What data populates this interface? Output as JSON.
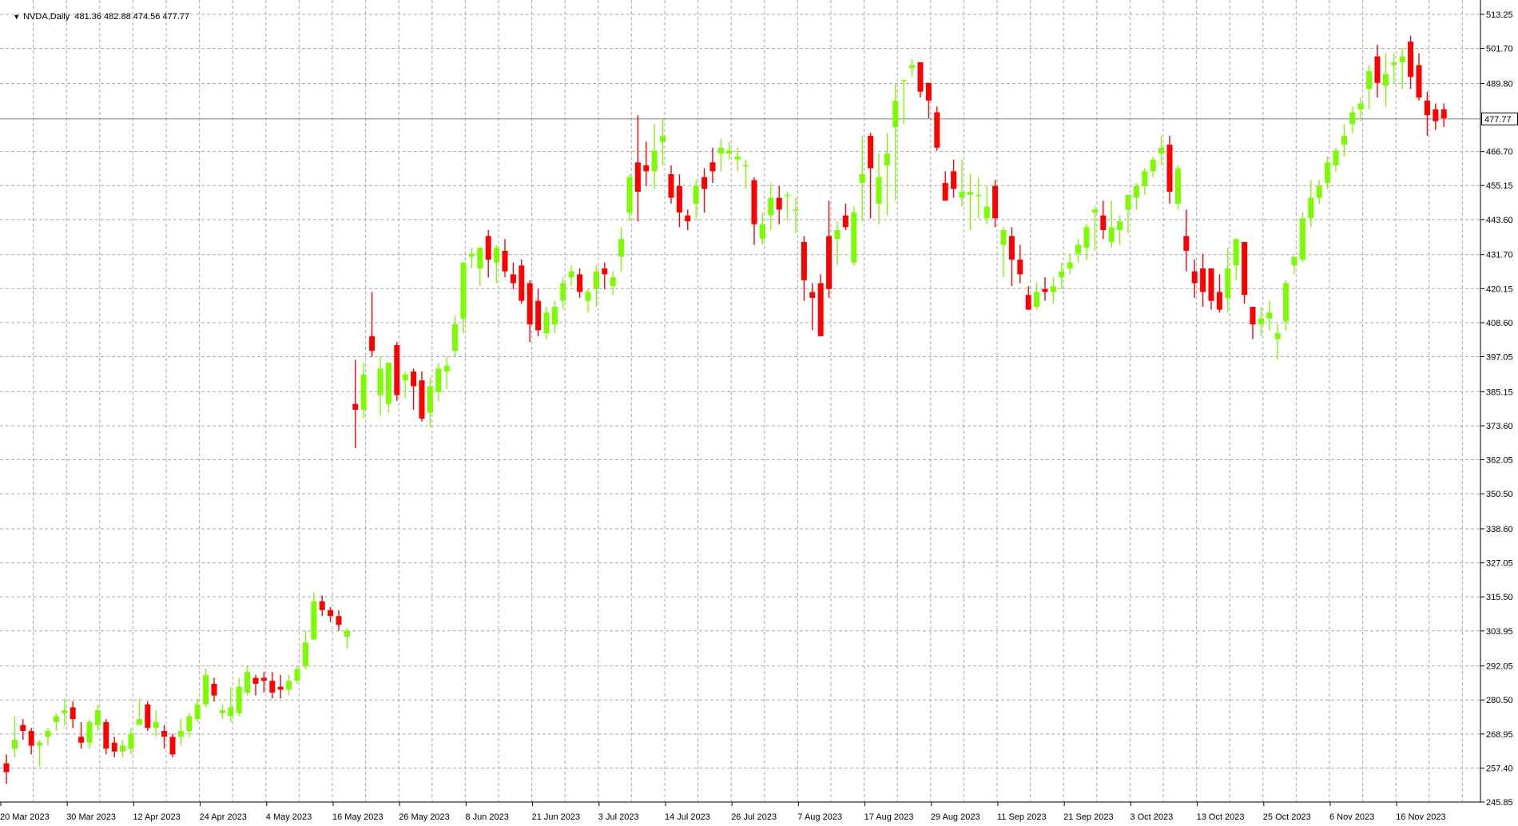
{
  "header": {
    "symbol": "NVDA,Daily",
    "ohlc": "481.36 482.88 474.56 477.77"
  },
  "colors": {
    "bull": "#7CFC00",
    "bear": "#FF0000",
    "grid": "#A9A9A9",
    "axis": "#000000",
    "background": "#FFFFFF",
    "price_line": "#808080"
  },
  "chart_data": {
    "type": "candlestick",
    "title": "NVDA,Daily",
    "grid": true,
    "ylim": [
      245.85,
      513.25
    ],
    "current_price": 477.77,
    "y_ticks": [
      "513.25",
      "501.70",
      "489.80",
      "477.77",
      "466.70",
      "455.15",
      "443.60",
      "431.70",
      "420.15",
      "408.60",
      "397.05",
      "385.15",
      "373.60",
      "362.05",
      "350.50",
      "338.60",
      "327.05",
      "315.50",
      "303.95",
      "292.05",
      "280.50",
      "268.95",
      "257.40",
      "245.85"
    ],
    "x_labels": [
      "20 Mar 2023",
      "30 Mar 2023",
      "12 Apr 2023",
      "24 Apr 2023",
      "4 May 2023",
      "16 May 2023",
      "26 May 2023",
      "8 Jun 2023",
      "21 Jun 2023",
      "3 Jul 2023",
      "14 Jul 2023",
      "26 Jul 2023",
      "7 Aug 2023",
      "17 Aug 2023",
      "29 Aug 2023",
      "11 Sep 2023",
      "21 Sep 2023",
      "3 Oct 2023",
      "13 Oct 2023",
      "25 Oct 2023",
      "6 Nov 2023",
      "16 Nov 2023"
    ],
    "candles": [
      {
        "o": 259,
        "h": 262,
        "l": 252,
        "c": 256
      },
      {
        "o": 264,
        "h": 275,
        "l": 261,
        "c": 267
      },
      {
        "o": 272,
        "h": 274,
        "l": 267,
        "c": 270
      },
      {
        "o": 270,
        "h": 271,
        "l": 262,
        "c": 265
      },
      {
        "o": 265,
        "h": 267,
        "l": 258,
        "c": 266
      },
      {
        "o": 268,
        "h": 271,
        "l": 265,
        "c": 270
      },
      {
        "o": 273,
        "h": 276,
        "l": 270,
        "c": 275
      },
      {
        "o": 276,
        "h": 281,
        "l": 272,
        "c": 277
      },
      {
        "o": 278,
        "h": 280,
        "l": 271,
        "c": 274
      },
      {
        "o": 268,
        "h": 273,
        "l": 264,
        "c": 266
      },
      {
        "o": 266,
        "h": 274,
        "l": 264,
        "c": 273
      },
      {
        "o": 272,
        "h": 279,
        "l": 270,
        "c": 277
      },
      {
        "o": 273,
        "h": 274,
        "l": 262,
        "c": 264
      },
      {
        "o": 266,
        "h": 268,
        "l": 261,
        "c": 263
      },
      {
        "o": 263,
        "h": 267,
        "l": 261,
        "c": 265
      },
      {
        "o": 264,
        "h": 271,
        "l": 262,
        "c": 269
      },
      {
        "o": 272,
        "h": 281,
        "l": 272,
        "c": 274
      },
      {
        "o": 279,
        "h": 280,
        "l": 270,
        "c": 271
      },
      {
        "o": 271,
        "h": 277,
        "l": 268,
        "c": 273
      },
      {
        "o": 270,
        "h": 272,
        "l": 264,
        "c": 268
      },
      {
        "o": 268,
        "h": 269,
        "l": 261,
        "c": 262
      },
      {
        "o": 268,
        "h": 274,
        "l": 265,
        "c": 270
      },
      {
        "o": 270,
        "h": 276,
        "l": 268,
        "c": 275
      },
      {
        "o": 274,
        "h": 281,
        "l": 273,
        "c": 279
      },
      {
        "o": 279,
        "h": 291,
        "l": 278,
        "c": 289
      },
      {
        "o": 286,
        "h": 288,
        "l": 280,
        "c": 282
      },
      {
        "o": 276,
        "h": 279,
        "l": 274,
        "c": 277
      },
      {
        "o": 275,
        "h": 285,
        "l": 273,
        "c": 278
      },
      {
        "o": 276,
        "h": 288,
        "l": 275,
        "c": 285
      },
      {
        "o": 283,
        "h": 292,
        "l": 282,
        "c": 290
      },
      {
        "o": 288,
        "h": 289,
        "l": 282,
        "c": 286
      },
      {
        "o": 288,
        "h": 290,
        "l": 283,
        "c": 287
      },
      {
        "o": 287,
        "h": 290,
        "l": 281,
        "c": 283
      },
      {
        "o": 285,
        "h": 289,
        "l": 281,
        "c": 284
      },
      {
        "o": 284,
        "h": 289,
        "l": 282,
        "c": 287
      },
      {
        "o": 287,
        "h": 292,
        "l": 286,
        "c": 291
      },
      {
        "o": 292,
        "h": 304,
        "l": 291,
        "c": 300
      },
      {
        "o": 301,
        "h": 317,
        "l": 301,
        "c": 314
      },
      {
        "o": 314,
        "h": 316,
        "l": 309,
        "c": 311
      },
      {
        "o": 311,
        "h": 312,
        "l": 307,
        "c": 309
      },
      {
        "o": 309,
        "h": 311,
        "l": 304,
        "c": 306
      },
      {
        "o": 302,
        "h": 305,
        "l": 298,
        "c": 304
      },
      {
        "o": 381,
        "h": 396,
        "l": 366,
        "c": 379
      },
      {
        "o": 379,
        "h": 395,
        "l": 376,
        "c": 391
      },
      {
        "o": 404,
        "h": 419,
        "l": 397,
        "c": 399
      },
      {
        "o": 384,
        "h": 397,
        "l": 377,
        "c": 393
      },
      {
        "o": 381,
        "h": 395,
        "l": 378,
        "c": 395
      },
      {
        "o": 401,
        "h": 402,
        "l": 382,
        "c": 384
      },
      {
        "o": 389,
        "h": 392,
        "l": 383,
        "c": 391
      },
      {
        "o": 392,
        "h": 393,
        "l": 379,
        "c": 387
      },
      {
        "o": 389,
        "h": 392,
        "l": 375,
        "c": 376
      },
      {
        "o": 378,
        "h": 390,
        "l": 373,
        "c": 387
      },
      {
        "o": 385,
        "h": 395,
        "l": 382,
        "c": 393
      },
      {
        "o": 392,
        "h": 397,
        "l": 386,
        "c": 394
      },
      {
        "o": 399,
        "h": 411,
        "l": 397,
        "c": 408
      },
      {
        "o": 410,
        "h": 429,
        "l": 405,
        "c": 429
      },
      {
        "o": 431,
        "h": 434,
        "l": 427,
        "c": 432
      },
      {
        "o": 427,
        "h": 433,
        "l": 421,
        "c": 434
      },
      {
        "o": 438,
        "h": 440,
        "l": 424,
        "c": 430
      },
      {
        "o": 429,
        "h": 435,
        "l": 422,
        "c": 434
      },
      {
        "o": 433,
        "h": 437,
        "l": 424,
        "c": 426
      },
      {
        "o": 425,
        "h": 429,
        "l": 420,
        "c": 422
      },
      {
        "o": 428,
        "h": 430,
        "l": 415,
        "c": 416
      },
      {
        "o": 422,
        "h": 423,
        "l": 402,
        "c": 408
      },
      {
        "o": 416,
        "h": 420,
        "l": 404,
        "c": 406
      },
      {
        "o": 405,
        "h": 414,
        "l": 403,
        "c": 412
      },
      {
        "o": 408,
        "h": 416,
        "l": 405,
        "c": 414
      },
      {
        "o": 416,
        "h": 424,
        "l": 413,
        "c": 422
      },
      {
        "o": 424,
        "h": 428,
        "l": 421,
        "c": 426
      },
      {
        "o": 425,
        "h": 427,
        "l": 417,
        "c": 419
      },
      {
        "o": 416,
        "h": 420,
        "l": 412,
        "c": 419
      },
      {
        "o": 420,
        "h": 428,
        "l": 414,
        "c": 426
      },
      {
        "o": 427,
        "h": 429,
        "l": 420,
        "c": 425
      },
      {
        "o": 421,
        "h": 426,
        "l": 418,
        "c": 424
      },
      {
        "o": 431,
        "h": 441,
        "l": 426,
        "c": 437
      },
      {
        "o": 446,
        "h": 459,
        "l": 443,
        "c": 458
      },
      {
        "o": 463,
        "h": 479,
        "l": 443,
        "c": 453
      },
      {
        "o": 462,
        "h": 470,
        "l": 455,
        "c": 460
      },
      {
        "o": 460,
        "h": 476,
        "l": 454,
        "c": 467
      },
      {
        "o": 470,
        "h": 478,
        "l": 462,
        "c": 472
      },
      {
        "o": 459,
        "h": 462,
        "l": 449,
        "c": 451
      },
      {
        "o": 455,
        "h": 459,
        "l": 441,
        "c": 446
      },
      {
        "o": 445,
        "h": 447,
        "l": 440,
        "c": 443
      },
      {
        "o": 449,
        "h": 457,
        "l": 444,
        "c": 455
      },
      {
        "o": 458,
        "h": 461,
        "l": 446,
        "c": 454
      },
      {
        "o": 463,
        "h": 468,
        "l": 456,
        "c": 460
      },
      {
        "o": 466,
        "h": 471,
        "l": 460,
        "c": 468
      },
      {
        "o": 466,
        "h": 470,
        "l": 464,
        "c": 467
      },
      {
        "o": 464,
        "h": 468,
        "l": 460,
        "c": 465
      },
      {
        "o": 462,
        "h": 464,
        "l": 454,
        "c": 462
      },
      {
        "o": 457,
        "h": 458,
        "l": 435,
        "c": 442
      },
      {
        "o": 437,
        "h": 446,
        "l": 435,
        "c": 442
      },
      {
        "o": 445,
        "h": 456,
        "l": 440,
        "c": 451
      },
      {
        "o": 451,
        "h": 455,
        "l": 442,
        "c": 447
      },
      {
        "o": 452,
        "h": 453,
        "l": 443,
        "c": 452
      },
      {
        "o": 447,
        "h": 451,
        "l": 439,
        "c": 447
      },
      {
        "o": 436,
        "h": 438,
        "l": 416,
        "c": 423
      },
      {
        "o": 419,
        "h": 422,
        "l": 406,
        "c": 417
      },
      {
        "o": 422,
        "h": 425,
        "l": 404,
        "c": 404
      },
      {
        "o": 438,
        "h": 450,
        "l": 417,
        "c": 420
      },
      {
        "o": 437,
        "h": 443,
        "l": 428,
        "c": 440
      },
      {
        "o": 445,
        "h": 449,
        "l": 440,
        "c": 441
      },
      {
        "o": 429,
        "h": 448,
        "l": 428,
        "c": 446
      },
      {
        "o": 456,
        "h": 472,
        "l": 443,
        "c": 459
      },
      {
        "o": 472,
        "h": 473,
        "l": 444,
        "c": 461
      },
      {
        "o": 449,
        "h": 466,
        "l": 442,
        "c": 458
      },
      {
        "o": 462,
        "h": 473,
        "l": 445,
        "c": 466
      },
      {
        "o": 475,
        "h": 490,
        "l": 450,
        "c": 484
      },
      {
        "o": 491,
        "h": 490,
        "l": 476,
        "c": 491
      },
      {
        "o": 495,
        "h": 498,
        "l": 492,
        "c": 496
      },
      {
        "o": 497,
        "h": 497,
        "l": 485,
        "c": 487
      },
      {
        "o": 490,
        "h": 490,
        "l": 478,
        "c": 484
      },
      {
        "o": 480,
        "h": 482,
        "l": 467,
        "c": 468
      },
      {
        "o": 456,
        "h": 460,
        "l": 452,
        "c": 450
      },
      {
        "o": 460,
        "h": 464,
        "l": 451,
        "c": 454
      },
      {
        "o": 451,
        "h": 464,
        "l": 448,
        "c": 453
      },
      {
        "o": 452,
        "h": 459,
        "l": 440,
        "c": 453
      },
      {
        "o": 452,
        "h": 458,
        "l": 444,
        "c": 452
      },
      {
        "o": 444,
        "h": 455,
        "l": 442,
        "c": 448
      },
      {
        "o": 455,
        "h": 457,
        "l": 441,
        "c": 444
      },
      {
        "o": 435,
        "h": 441,
        "l": 424,
        "c": 440
      },
      {
        "o": 438,
        "h": 441,
        "l": 421,
        "c": 430
      },
      {
        "o": 430,
        "h": 435,
        "l": 422,
        "c": 425
      },
      {
        "o": 418,
        "h": 421,
        "l": 413,
        "c": 413
      },
      {
        "o": 414,
        "h": 422,
        "l": 413,
        "c": 419
      },
      {
        "o": 420,
        "h": 424,
        "l": 416,
        "c": 419
      },
      {
        "o": 419,
        "h": 424,
        "l": 415,
        "c": 421
      },
      {
        "o": 424,
        "h": 429,
        "l": 420,
        "c": 426
      },
      {
        "o": 427,
        "h": 432,
        "l": 425,
        "c": 429
      },
      {
        "o": 432,
        "h": 437,
        "l": 429,
        "c": 435
      },
      {
        "o": 434,
        "h": 442,
        "l": 430,
        "c": 441
      },
      {
        "o": 446,
        "h": 448,
        "l": 433,
        "c": 447
      },
      {
        "o": 445,
        "h": 450,
        "l": 437,
        "c": 440
      },
      {
        "o": 436,
        "h": 450,
        "l": 434,
        "c": 441
      },
      {
        "o": 440,
        "h": 445,
        "l": 435,
        "c": 443
      },
      {
        "o": 447,
        "h": 452,
        "l": 439,
        "c": 452
      },
      {
        "o": 451,
        "h": 456,
        "l": 447,
        "c": 455
      },
      {
        "o": 455,
        "h": 461,
        "l": 452,
        "c": 460
      },
      {
        "o": 460,
        "h": 465,
        "l": 458,
        "c": 464
      },
      {
        "o": 466,
        "h": 472,
        "l": 462,
        "c": 468
      },
      {
        "o": 469,
        "h": 472,
        "l": 449,
        "c": 453
      },
      {
        "o": 449,
        "h": 462,
        "l": 447,
        "c": 461
      },
      {
        "o": 438,
        "h": 447,
        "l": 426,
        "c": 433
      },
      {
        "o": 426,
        "h": 430,
        "l": 417,
        "c": 422
      },
      {
        "o": 427,
        "h": 432,
        "l": 414,
        "c": 419
      },
      {
        "o": 427,
        "h": 427,
        "l": 413,
        "c": 416
      },
      {
        "o": 419,
        "h": 425,
        "l": 412,
        "c": 413
      },
      {
        "o": 417,
        "h": 434,
        "l": 412,
        "c": 427
      },
      {
        "o": 428,
        "h": 436,
        "l": 423,
        "c": 437
      },
      {
        "o": 436,
        "h": 436,
        "l": 415,
        "c": 418
      },
      {
        "o": 414,
        "h": 414,
        "l": 403,
        "c": 408
      },
      {
        "o": 408,
        "h": 414,
        "l": 404,
        "c": 410
      },
      {
        "o": 410,
        "h": 416,
        "l": 406,
        "c": 412
      },
      {
        "o": 403,
        "h": 408,
        "l": 396,
        "c": 405
      },
      {
        "o": 409,
        "h": 423,
        "l": 406,
        "c": 422
      },
      {
        "o": 428,
        "h": 431,
        "l": 425,
        "c": 431
      },
      {
        "o": 430,
        "h": 446,
        "l": 429,
        "c": 444
      },
      {
        "o": 444,
        "h": 457,
        "l": 441,
        "c": 451
      },
      {
        "o": 451,
        "h": 457,
        "l": 449,
        "c": 455
      },
      {
        "o": 456,
        "h": 465,
        "l": 454,
        "c": 463
      },
      {
        "o": 462,
        "h": 468,
        "l": 460,
        "c": 467
      },
      {
        "o": 469,
        "h": 476,
        "l": 465,
        "c": 472
      },
      {
        "o": 476,
        "h": 482,
        "l": 473,
        "c": 480
      },
      {
        "o": 481,
        "h": 485,
        "l": 477,
        "c": 483
      },
      {
        "o": 488,
        "h": 496,
        "l": 481,
        "c": 494
      },
      {
        "o": 499,
        "h": 503,
        "l": 485,
        "c": 490
      },
      {
        "o": 489,
        "h": 500,
        "l": 482,
        "c": 493
      },
      {
        "o": 496,
        "h": 500,
        "l": 490,
        "c": 497
      },
      {
        "o": 497,
        "h": 502,
        "l": 488,
        "c": 499
      },
      {
        "o": 504,
        "h": 506,
        "l": 488,
        "c": 492
      },
      {
        "o": 496,
        "h": 500,
        "l": 484,
        "c": 485
      },
      {
        "o": 484,
        "h": 487,
        "l": 472,
        "c": 479
      },
      {
        "o": 481,
        "h": 483,
        "l": 474,
        "c": 477
      },
      {
        "o": 481,
        "h": 483,
        "l": 475,
        "c": 478
      }
    ]
  }
}
